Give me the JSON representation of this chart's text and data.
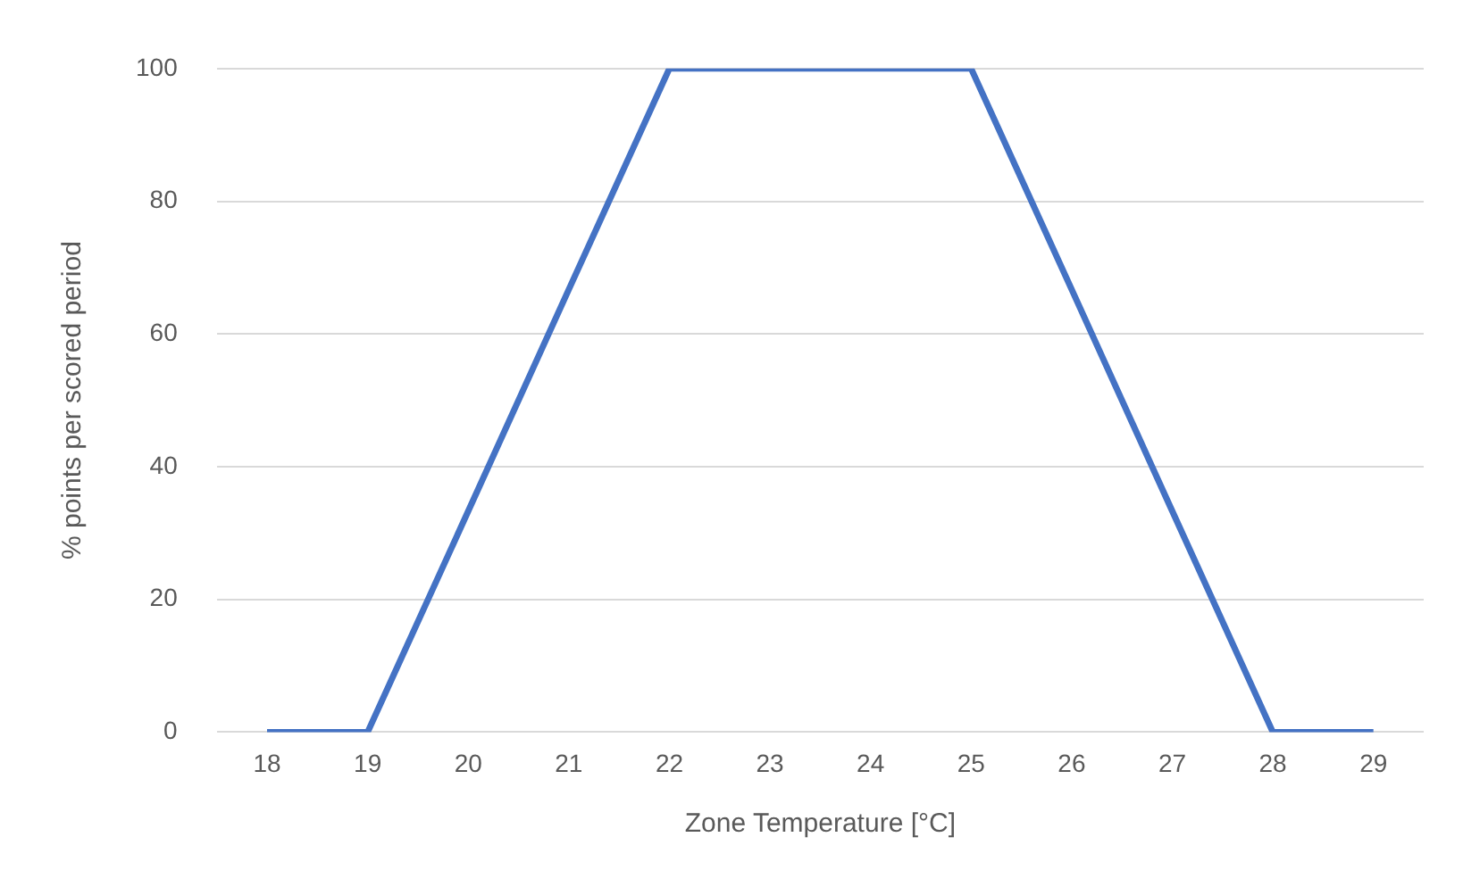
{
  "chart_data": {
    "type": "line",
    "xlabel": "Zone Temperature [°C]",
    "ylabel": "% points per scored period",
    "categories": [
      "18",
      "19",
      "20",
      "21",
      "22",
      "23",
      "24",
      "25",
      "26",
      "27",
      "28",
      "29"
    ],
    "series": [
      {
        "color": "#4472c4",
        "values": [
          0,
          0,
          33.3,
          66.7,
          100,
          100,
          100,
          100,
          66.7,
          33.3,
          0,
          0
        ]
      }
    ],
    "ylim": [
      0,
      100
    ],
    "yticks": [
      0,
      20,
      40,
      60,
      80,
      100
    ],
    "grid": "y",
    "legend": false,
    "marker": "none",
    "line_style": "solid"
  }
}
